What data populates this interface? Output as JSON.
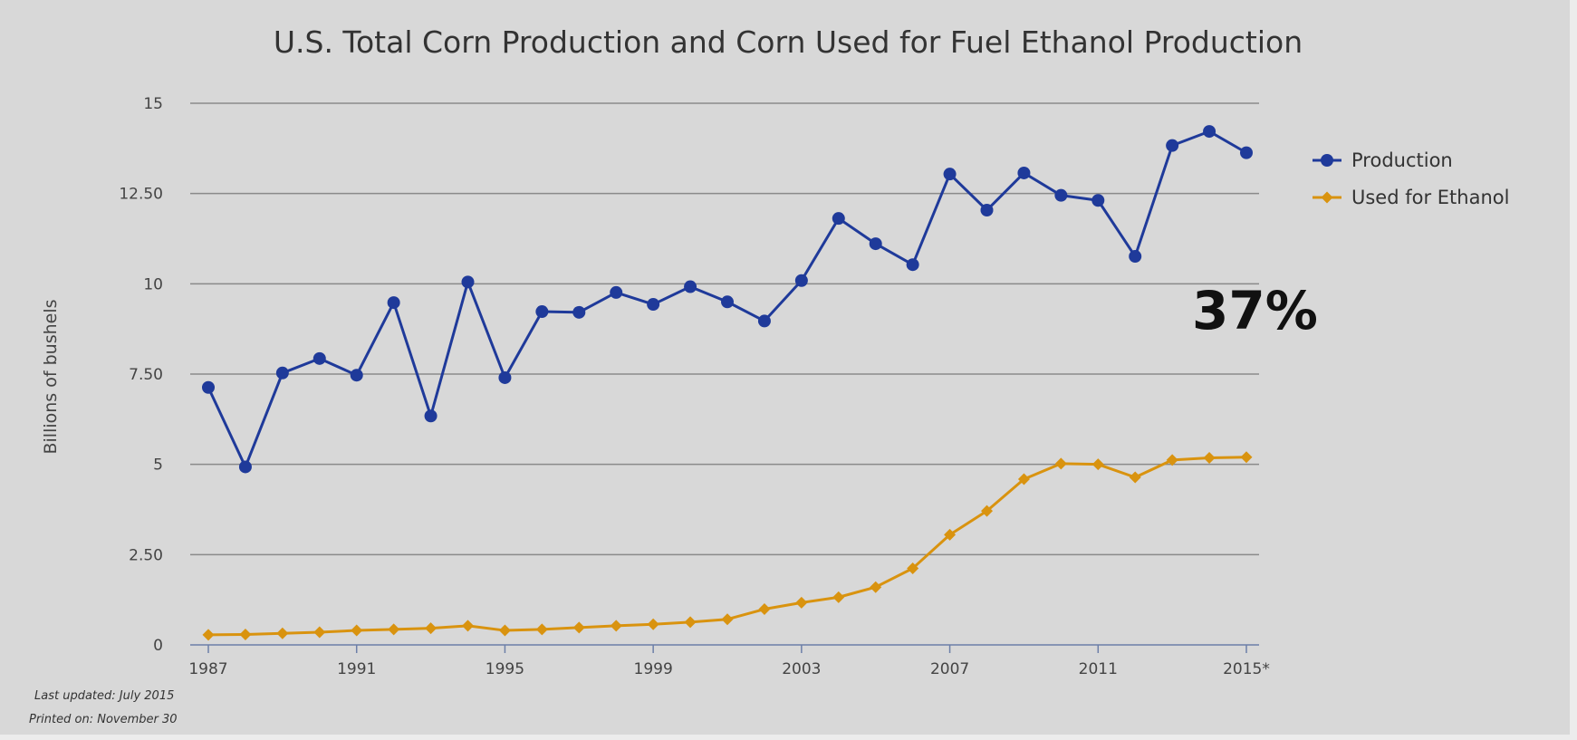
{
  "chart_data": {
    "type": "line",
    "title": "U.S. Total Corn Production and Corn Used for Fuel Ethanol Production",
    "xlabel": "",
    "ylabel": "Billions of bushels",
    "x": [
      1987,
      1988,
      1989,
      1990,
      1991,
      1992,
      1993,
      1994,
      1995,
      1996,
      1997,
      1998,
      1999,
      2000,
      2001,
      2002,
      2003,
      2004,
      2005,
      2006,
      2007,
      2008,
      2009,
      2010,
      2011,
      2012,
      2013,
      2014,
      2015
    ],
    "xticks": [
      1987,
      1991,
      1995,
      1999,
      2003,
      2007,
      2011,
      2015
    ],
    "xtick_labels": [
      "1987",
      "1991",
      "1995",
      "1999",
      "2003",
      "2007",
      "2011",
      "2015*"
    ],
    "yticks": [
      0,
      2.5,
      5,
      7.5,
      10,
      12.5,
      15
    ],
    "ytick_labels": [
      "0",
      "2.50",
      "5",
      "7.50",
      "10",
      "12.50",
      "15"
    ],
    "xlim": [
      1987,
      2015
    ],
    "ylim": [
      0,
      15
    ],
    "grid": true,
    "legend_position": "right",
    "series": [
      {
        "name": "Production",
        "color": "#1f3a9a",
        "marker": "circle",
        "values": [
          7.13,
          4.93,
          7.53,
          7.93,
          7.47,
          9.48,
          6.34,
          10.05,
          7.4,
          9.23,
          9.21,
          9.76,
          9.43,
          9.92,
          9.5,
          8.97,
          10.09,
          11.81,
          11.11,
          10.53,
          13.04,
          12.04,
          13.07,
          12.45,
          12.31,
          10.76,
          13.83,
          14.22,
          13.63
        ]
      },
      {
        "name": "Used for Ethanol",
        "color": "#d9930f",
        "marker": "diamond",
        "values": [
          0.28,
          0.29,
          0.32,
          0.35,
          0.4,
          0.43,
          0.46,
          0.53,
          0.4,
          0.43,
          0.48,
          0.53,
          0.57,
          0.63,
          0.71,
          0.99,
          1.17,
          1.32,
          1.6,
          2.12,
          3.05,
          3.71,
          4.59,
          5.02,
          5.0,
          4.64,
          5.12,
          5.18,
          5.2
        ]
      }
    ],
    "annotation": "37%",
    "footnotes": [
      "Last updated: July 2015",
      "Printed on: November 30"
    ]
  }
}
